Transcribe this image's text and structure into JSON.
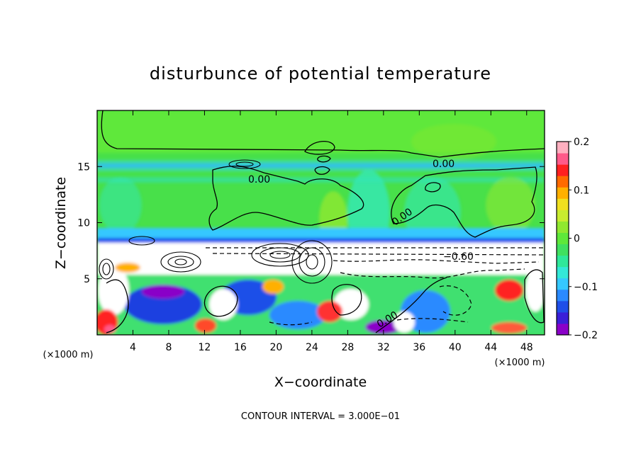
{
  "chart_data": {
    "type": "heatmap",
    "title": "disturbunce of potential temperature",
    "xlabel": "X−coordinate",
    "ylabel": "Z−coordinate",
    "x_unit": "(×1000 m)",
    "y_unit": "(×1000 m)",
    "xlim": [
      0,
      50
    ],
    "ylim": [
      0,
      20
    ],
    "x_ticks": [
      "4",
      "8",
      "12",
      "16",
      "20",
      "24",
      "28",
      "32",
      "36",
      "40",
      "44",
      "48"
    ],
    "y_ticks": [
      "5",
      "10",
      "15"
    ],
    "colorbar": {
      "range": [
        -0.2,
        0.2
      ],
      "ticks": [
        "0.2",
        "0.1",
        "0",
        "−0.1",
        "−0.2"
      ],
      "colors": [
        "#8a00c8",
        "#3a1fd8",
        "#1f4fe8",
        "#2a8aff",
        "#35c8ff",
        "#33e8d8",
        "#2fe89a",
        "#40e060",
        "#5ee83a",
        "#90e830",
        "#c8ec30",
        "#f0e020",
        "#ffb000",
        "#ff6a00",
        "#ff2020",
        "#ff5a8a",
        "#ffb0c0"
      ]
    },
    "contour_labels": [
      "0.00",
      "0.00",
      "0.00",
      "0.00",
      "−0.60"
    ],
    "annotation": "CONTOUR INTERVAL = 3.000E−01",
    "grid": false
  }
}
